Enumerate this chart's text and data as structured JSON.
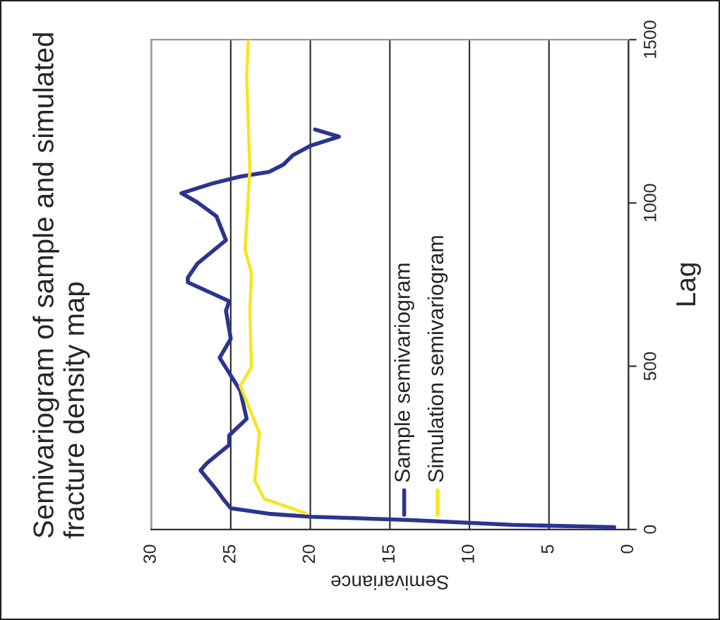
{
  "chart_data": {
    "type": "line",
    "title": "Semivariogram of sample and simulated fracture density map",
    "xlabel": "Semivariance",
    "ylabel": "Lag",
    "xlim": [
      30,
      0
    ],
    "xticks": [
      0,
      5,
      10,
      15,
      20,
      25,
      30
    ],
    "ylim": [
      0,
      1500
    ],
    "yticks": [
      0,
      500,
      1000,
      1500
    ],
    "grid": "x",
    "legend": "bottom",
    "marker": "none",
    "line_style": "solid",
    "series": [
      {
        "name": "Sample semivariogram",
        "color": "#2b3590",
        "values": [
          7,
          14,
          29,
          39,
          48,
          65,
          95,
          122,
          181,
          203,
          259,
          288,
          339,
          425,
          526,
          584,
          670,
          699,
          757,
          771,
          814,
          886,
          959,
          1002,
          1030,
          1059,
          1081,
          1095,
          1117,
          1146,
          1175,
          1203,
          1225
        ],
        "x": [
          0.9,
          7.3,
          13.7,
          20,
          22.6,
          25,
          25.5,
          25.9,
          26.9,
          26.5,
          25.1,
          25.1,
          24,
          24.4,
          25.7,
          25,
          25.3,
          25.1,
          27.7,
          27.7,
          27.1,
          25.3,
          25.9,
          27.1,
          28.1,
          26.2,
          24.4,
          22.6,
          21.7,
          21.1,
          20,
          18.2,
          19.7
        ]
      },
      {
        "name": "Simulation semivariogram",
        "color": "#f5e61e",
        "values": [
          50,
          94,
          151,
          194,
          295,
          440,
          497,
          670,
          785,
          857,
          1102,
          1391,
          1499
        ],
        "x": [
          20.3,
          22.9,
          23.5,
          23.4,
          23.2,
          24.4,
          23.7,
          23.8,
          23.7,
          24.1,
          23.8,
          24,
          23.9
        ]
      }
    ]
  }
}
